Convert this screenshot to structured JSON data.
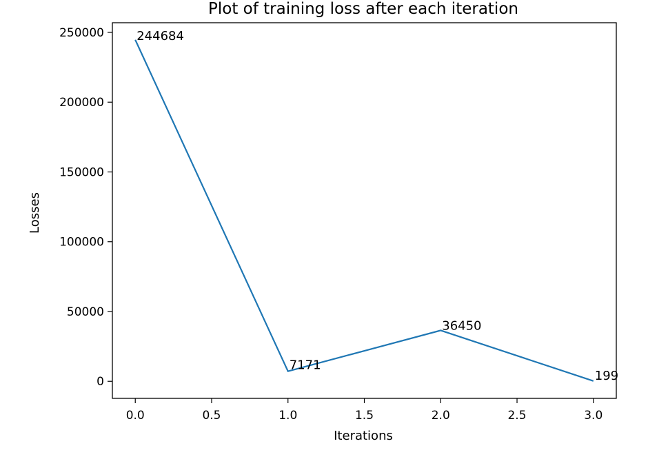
{
  "chart_data": {
    "type": "line",
    "title": "Plot of training loss after each iteration",
    "xlabel": "Iterations",
    "ylabel": "Losses",
    "x": [
      0,
      1,
      2,
      3
    ],
    "series": [
      {
        "name": "Training loss",
        "values": [
          244684,
          7171,
          36450,
          199
        ],
        "color": "#1f77b4"
      }
    ],
    "annotations": [
      "244684",
      "7171",
      "36450",
      "199"
    ],
    "xlim": [
      -0.15,
      3.15
    ],
    "ylim": [
      -12224.25,
      256908.25
    ],
    "xticks": [
      0.0,
      0.5,
      1.0,
      1.5,
      2.0,
      2.5,
      3.0
    ],
    "xtick_labels": [
      "0.0",
      "0.5",
      "1.0",
      "1.5",
      "2.0",
      "2.5",
      "3.0"
    ],
    "yticks": [
      0,
      50000,
      100000,
      150000,
      200000,
      250000
    ],
    "ytick_labels": [
      "0",
      "50000",
      "100000",
      "150000",
      "200000",
      "250000"
    ],
    "grid": false,
    "legend": "none"
  }
}
